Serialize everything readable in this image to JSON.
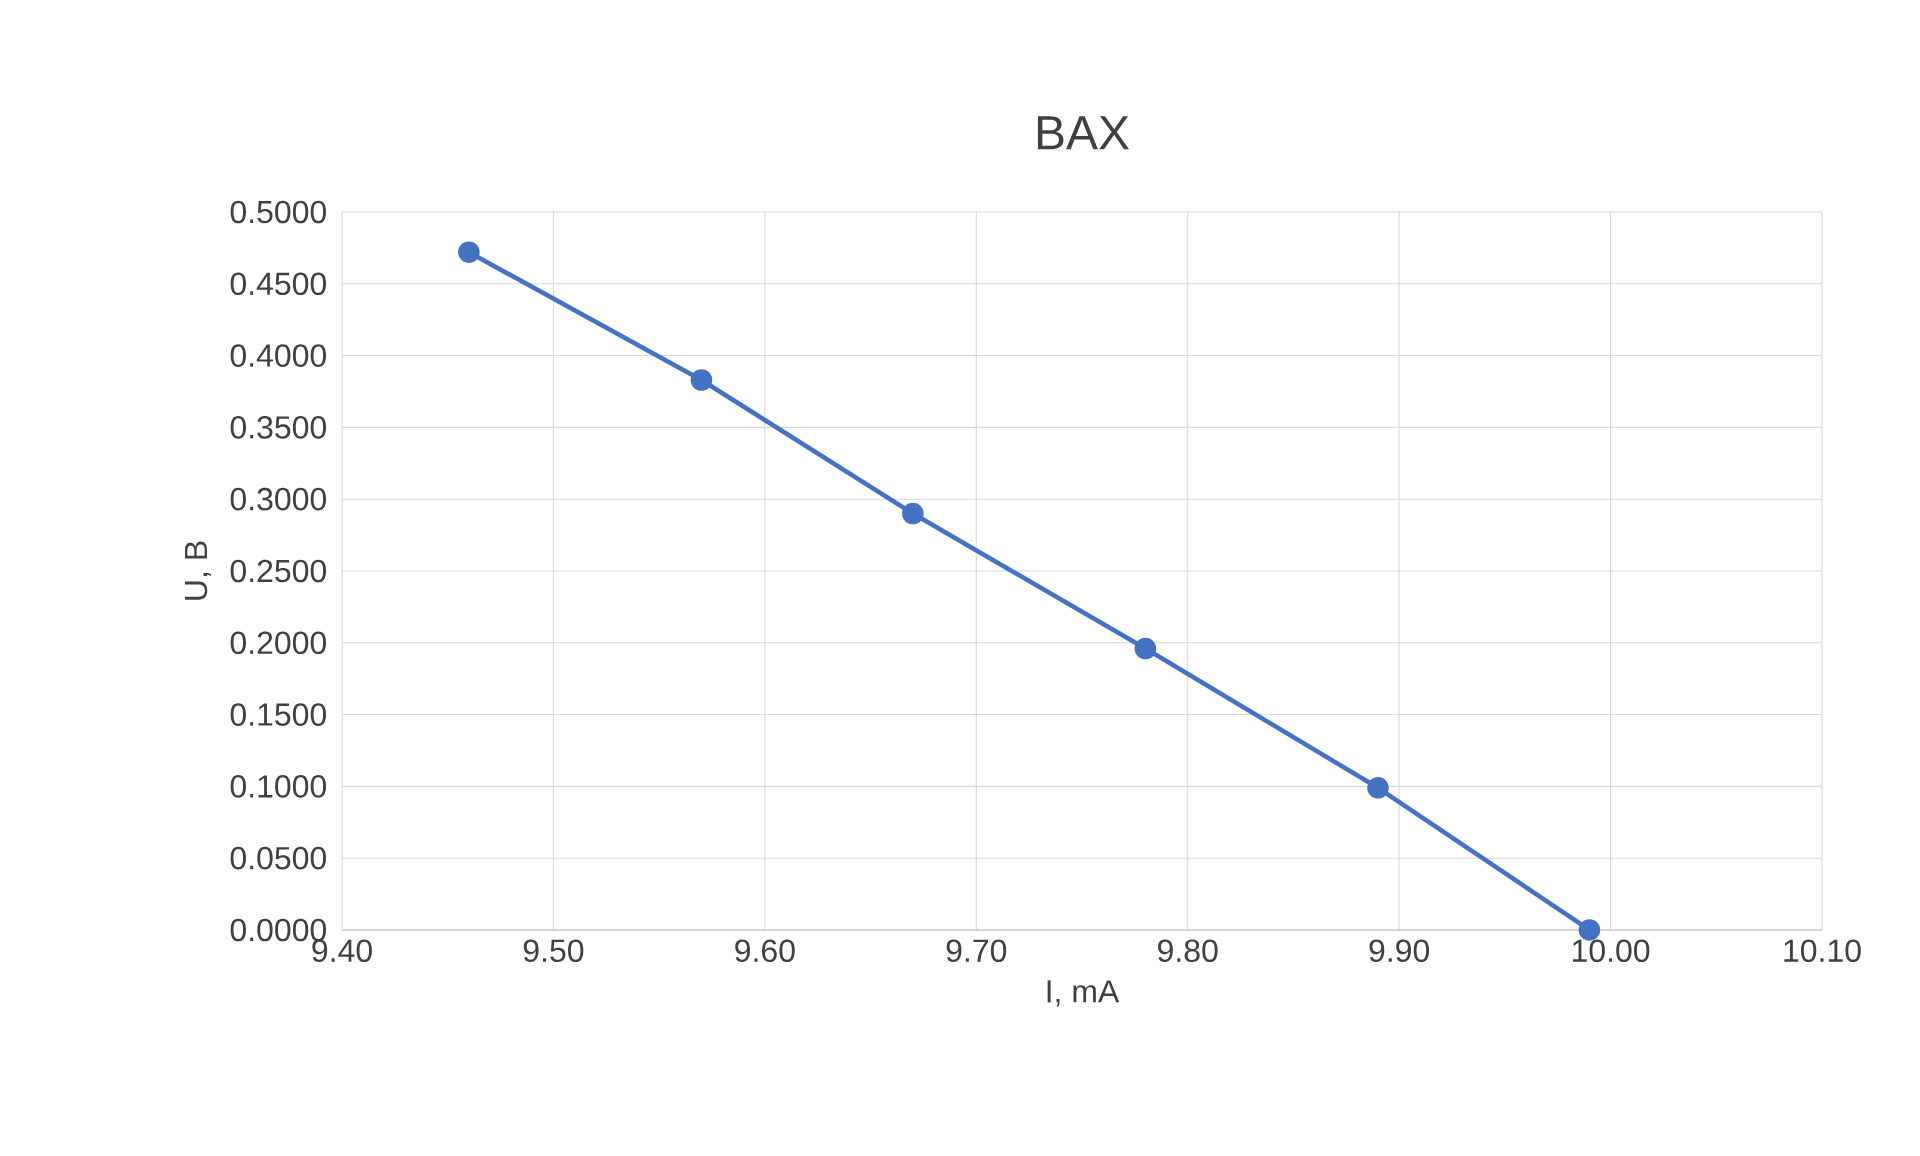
{
  "chart_data": {
    "type": "line",
    "title": "BAX",
    "xlabel": "I, mA",
    "ylabel": "U, B",
    "x": [
      9.46,
      9.57,
      9.67,
      9.78,
      9.89,
      9.99
    ],
    "series": [
      {
        "color": "#4472c4",
        "values": [
          0.472,
          0.383,
          0.29,
          0.196,
          0.099,
          0.0
        ]
      }
    ],
    "xlim": [
      9.4,
      10.1
    ],
    "xticks": [
      {
        "value": 9.4,
        "label": "9.40"
      },
      {
        "value": 9.5,
        "label": "9.50"
      },
      {
        "value": 9.6,
        "label": "9.60"
      },
      {
        "value": 9.7,
        "label": "9.70"
      },
      {
        "value": 9.8,
        "label": "9.80"
      },
      {
        "value": 9.9,
        "label": "9.90"
      },
      {
        "value": 10.0,
        "label": "10.00"
      },
      {
        "value": 10.1,
        "label": "10.10"
      }
    ],
    "ylim": [
      0,
      0.5
    ],
    "yticks": [
      {
        "value": 0,
        "label": "0.0000"
      },
      {
        "value": 0.05,
        "label": "0.0500"
      },
      {
        "value": 0.1,
        "label": "0.1000"
      },
      {
        "value": 0.15,
        "label": "0.1500"
      },
      {
        "value": 0.2,
        "label": "0.2000"
      },
      {
        "value": 0.25,
        "label": "0.2500"
      },
      {
        "value": 0.3,
        "label": "0.3000"
      },
      {
        "value": 0.35,
        "label": "0.3500"
      },
      {
        "value": 0.4,
        "label": "0.4000"
      },
      {
        "value": 0.45,
        "label": "0.4500"
      },
      {
        "value": 0.5,
        "label": "0.5000"
      }
    ],
    "grid": true,
    "marker": "circle",
    "line_style": "solid"
  }
}
